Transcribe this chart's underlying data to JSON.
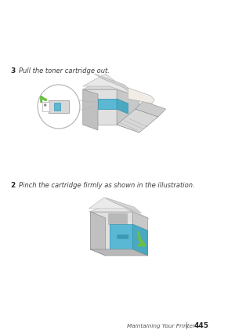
{
  "background_color": "#ffffff",
  "step2_number": "2",
  "step2_text": "Pinch the cartridge firmly as shown in the illustration.",
  "step3_number": "3",
  "step3_text": "Pull the toner cartridge out.",
  "footer_text": "Maintaining Your Printer",
  "footer_separator": "|",
  "footer_page": "445",
  "text_color": "#404040",
  "number_color": "#222222",
  "light_gray": "#d4d4d4",
  "med_gray": "#b0b0b0",
  "dark_gray": "#888888",
  "darker_gray": "#606060",
  "blue_color": "#5bb8d4",
  "blue_dark": "#3a9ab5",
  "green_arrow": "#6abf45",
  "white": "#ffffff",
  "body_fill": "#e0e0e0",
  "body_fill2": "#d0d0d0",
  "side_fill": "#c8c8c8",
  "top_fill": "#d8d8d8"
}
